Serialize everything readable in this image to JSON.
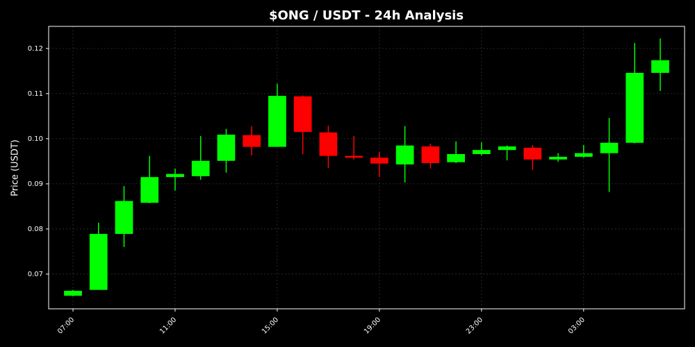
{
  "chart_data": {
    "type": "candlestick",
    "title": "$ONG / USDT - 24h Analysis",
    "y_label": "Price (USDT)",
    "categories": [
      "07:00",
      null,
      null,
      null,
      "11:00",
      null,
      null,
      null,
      "15:00",
      null,
      null,
      null,
      "19:00",
      null,
      null,
      null,
      "23:00",
      null,
      null,
      null,
      "03:00",
      null,
      null,
      null
    ],
    "open": [
      0.0652,
      0.0665,
      0.0789,
      0.0858,
      0.0915,
      0.0917,
      0.0951,
      0.1008,
      0.0982,
      0.1094,
      0.1014,
      0.0962,
      0.0958,
      0.0943,
      0.0983,
      0.0948,
      0.0966,
      0.0975,
      0.098,
      0.0954,
      0.096,
      0.0968,
      0.0991,
      0.1146
    ],
    "high": [
      0.0665,
      0.0814,
      0.0895,
      0.0962,
      0.0934,
      0.1006,
      0.1022,
      0.1028,
      0.1122,
      0.1096,
      0.1029,
      0.1006,
      0.0971,
      0.1028,
      0.0989,
      0.0994,
      0.0992,
      0.0985,
      0.0986,
      0.0968,
      0.0986,
      0.1046,
      0.1212,
      0.1222
    ],
    "low": [
      0.0651,
      0.0665,
      0.076,
      0.0857,
      0.0885,
      0.0909,
      0.0925,
      0.0963,
      0.0982,
      0.0966,
      0.0935,
      0.0954,
      0.0915,
      0.0903,
      0.0934,
      0.0946,
      0.0963,
      0.0952,
      0.0931,
      0.0949,
      0.0958,
      0.0882,
      0.099,
      0.1106
    ],
    "close": [
      0.0663,
      0.0789,
      0.0862,
      0.0915,
      0.0922,
      0.0951,
      0.1009,
      0.0982,
      0.1095,
      0.1015,
      0.0962,
      0.0958,
      0.0945,
      0.0985,
      0.0946,
      0.0966,
      0.0975,
      0.0983,
      0.0954,
      0.096,
      0.0968,
      0.0991,
      0.1146,
      0.1174
    ],
    "up_color": "#00ff00",
    "down_color": "#ff0000",
    "ylim": [
      0.0623,
      0.1249
    ],
    "yticks": [
      0.07,
      0.08,
      0.09,
      {
        "value": 0.1,
        "label": "0.10"
      },
      0.11,
      0.12
    ],
    "grid": true
  }
}
